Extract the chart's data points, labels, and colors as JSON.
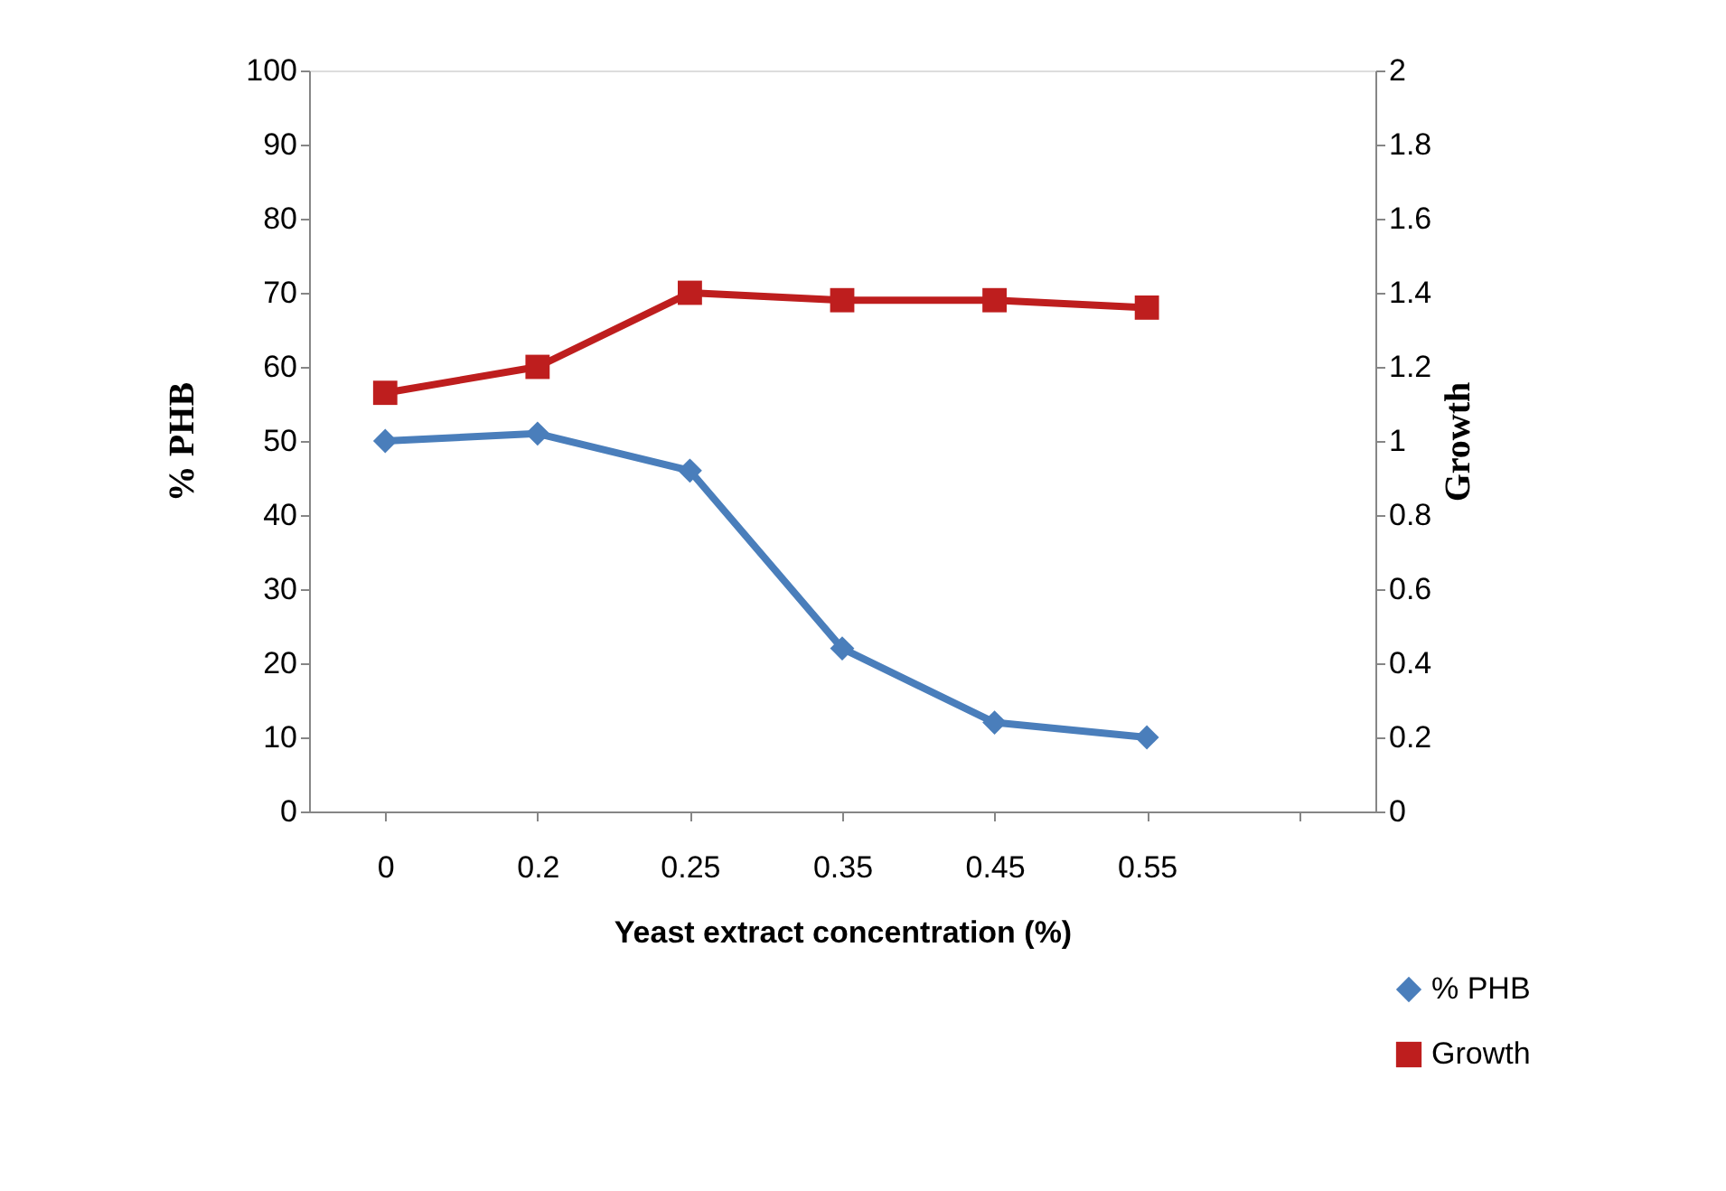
{
  "chart_data": {
    "type": "line",
    "xlabel": "Yeast extract  concentration    (%)",
    "ylabel": "% PHB",
    "y2label": "Growth",
    "categories": [
      "0",
      "0.2",
      "0.25",
      "0.35",
      "0.45",
      "0.55",
      null
    ],
    "series": [
      {
        "name": "% PHB",
        "color": "#4a7ebb",
        "values": [
          50,
          51,
          46,
          22,
          12,
          10,
          null
        ],
        "marker": "diamond"
      },
      {
        "name": "Growth",
        "color": "#be1e1e",
        "values": [
          1.13,
          1.2,
          1.4,
          1.38,
          1.38,
          1.36,
          null
        ],
        "axis": "y2",
        "marker": "square"
      }
    ],
    "ylim": [
      0,
      100
    ],
    "yticks": [
      0,
      10,
      20,
      30,
      40,
      50,
      60,
      70,
      80,
      90,
      100
    ],
    "y2lim": [
      0,
      2
    ],
    "y2ticks": [
      0,
      0.2,
      0.4,
      0.6,
      0.8,
      1,
      1.2,
      1.4,
      1.6,
      1.8,
      2
    ],
    "grid": false,
    "legend": "bottom right",
    "line_style": "solid"
  }
}
